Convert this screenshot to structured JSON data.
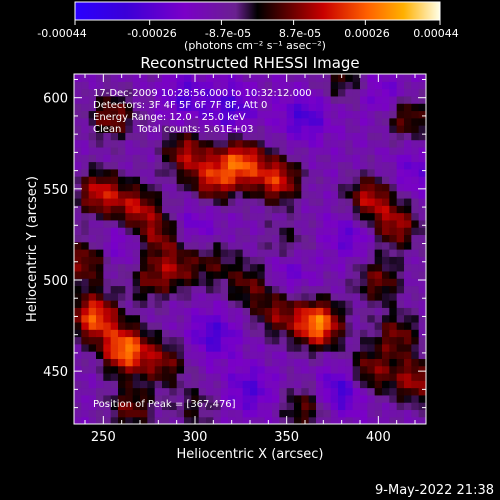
{
  "colorbar": {
    "tick_labels": [
      "-0.00044",
      "-0.00026",
      "-8.7e-05",
      "8.7e-05",
      "0.00026",
      "0.00044"
    ],
    "tick_values": [
      -0.00044,
      -0.00026,
      -8.7e-05,
      8.7e-05,
      0.00026,
      0.00044
    ],
    "range": [
      -0.00044,
      0.00044
    ],
    "unit_label": "(photons cm⁻² s⁻¹ asec⁻²)"
  },
  "chart_data": {
    "type": "heatmap",
    "title": "Reconstructed RHESSI Image",
    "xlabel": "Heliocentric X (arcsec)",
    "ylabel": "Heliocentric Y (arcsec)",
    "xlim": [
      234,
      426
    ],
    "ylim": [
      421,
      613
    ],
    "xticks": [
      250,
      300,
      350,
      400
    ],
    "yticks": [
      450,
      500,
      550,
      600
    ],
    "annotations": [
      "17-Dec-2009 10:28:56.000 to 10:32:12.000",
      "Detectors: 3F 4F 5F 6F 7F 8F, Att 0",
      "Energy Range: 12.0 - 25.0 keV",
      "Clean     Total counts: 5.61E+03"
    ],
    "peak_label": "Position of Peak = [367,476]",
    "peak": [
      367,
      476
    ],
    "sources": [
      {
        "x": 367,
        "y": 476,
        "amp": 0.00042
      },
      {
        "x": 262,
        "y": 462,
        "amp": 0.0004
      },
      {
        "x": 245,
        "y": 480,
        "amp": 0.00036
      },
      {
        "x": 283,
        "y": 455,
        "amp": 0.0002
      },
      {
        "x": 325,
        "y": 565,
        "amp": 0.00034
      },
      {
        "x": 345,
        "y": 555,
        "amp": 0.0003
      },
      {
        "x": 310,
        "y": 555,
        "amp": 0.00026
      },
      {
        "x": 295,
        "y": 570,
        "amp": 0.00024
      },
      {
        "x": 248,
        "y": 548,
        "amp": 0.00028
      },
      {
        "x": 268,
        "y": 540,
        "amp": 0.00024
      },
      {
        "x": 280,
        "y": 525,
        "amp": 0.0002
      },
      {
        "x": 290,
        "y": 507,
        "amp": 0.00018
      },
      {
        "x": 395,
        "y": 545,
        "amp": 0.00026
      },
      {
        "x": 415,
        "y": 590,
        "amp": 0.00022
      },
      {
        "x": 410,
        "y": 530,
        "amp": 0.00024
      },
      {
        "x": 400,
        "y": 500,
        "amp": 0.0002
      },
      {
        "x": 420,
        "y": 445,
        "amp": 0.00024
      },
      {
        "x": 395,
        "y": 450,
        "amp": 0.00022
      },
      {
        "x": 330,
        "y": 498,
        "amp": 0.00018
      },
      {
        "x": 345,
        "y": 482,
        "amp": 0.0002
      },
      {
        "x": 350,
        "y": 520,
        "amp": 0.00012
      },
      {
        "x": 310,
        "y": 510,
        "amp": 0.00014
      },
      {
        "x": 255,
        "y": 590,
        "amp": 0.00022
      },
      {
        "x": 240,
        "y": 510,
        "amp": 0.00022
      },
      {
        "x": 300,
        "y": 430,
        "amp": 0.00012
      },
      {
        "x": 360,
        "y": 430,
        "amp": 0.00018
      },
      {
        "x": 265,
        "y": 430,
        "amp": 0.0002
      },
      {
        "x": 380,
        "y": 610,
        "amp": 0.00014
      },
      {
        "x": 410,
        "y": 470,
        "amp": 0.0002
      },
      {
        "x": 275,
        "y": 500,
        "amp": 0.00016
      },
      {
        "x": 320,
        "y": 595,
        "amp": -0.00016
      },
      {
        "x": 295,
        "y": 600,
        "amp": -0.00014
      },
      {
        "x": 360,
        "y": 590,
        "amp": -0.00016
      },
      {
        "x": 385,
        "y": 525,
        "amp": -0.00012
      },
      {
        "x": 310,
        "y": 470,
        "amp": -0.00016
      },
      {
        "x": 330,
        "y": 440,
        "amp": -0.00014
      },
      {
        "x": 380,
        "y": 440,
        "amp": -0.0002
      },
      {
        "x": 260,
        "y": 520,
        "amp": -0.0001
      },
      {
        "x": 350,
        "y": 505,
        "amp": -0.00012
      },
      {
        "x": 405,
        "y": 600,
        "amp": -0.00012
      },
      {
        "x": 300,
        "y": 530,
        "amp": -0.0001
      },
      {
        "x": 420,
        "y": 560,
        "amp": -0.0001
      }
    ]
  },
  "footer": {
    "timestamp": "9-May-2022 21:38"
  }
}
